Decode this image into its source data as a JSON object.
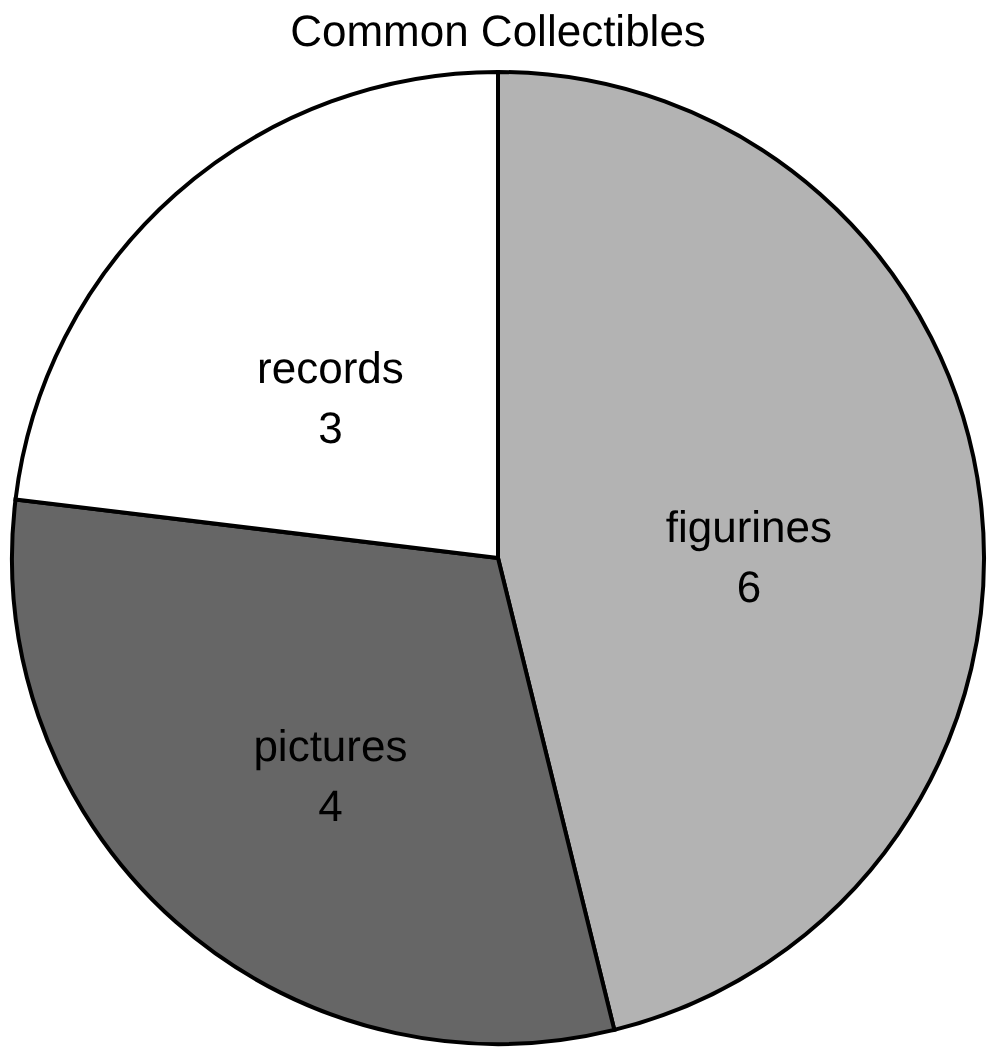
{
  "chart_data": {
    "type": "pie",
    "title": "Common Collectibles",
    "categories": [
      "figurines",
      "pictures",
      "records"
    ],
    "values": [
      6,
      4,
      3
    ],
    "colors": [
      "#b3b3b3",
      "#666666",
      "#ffffff"
    ],
    "data_labels": true,
    "legend": false
  }
}
